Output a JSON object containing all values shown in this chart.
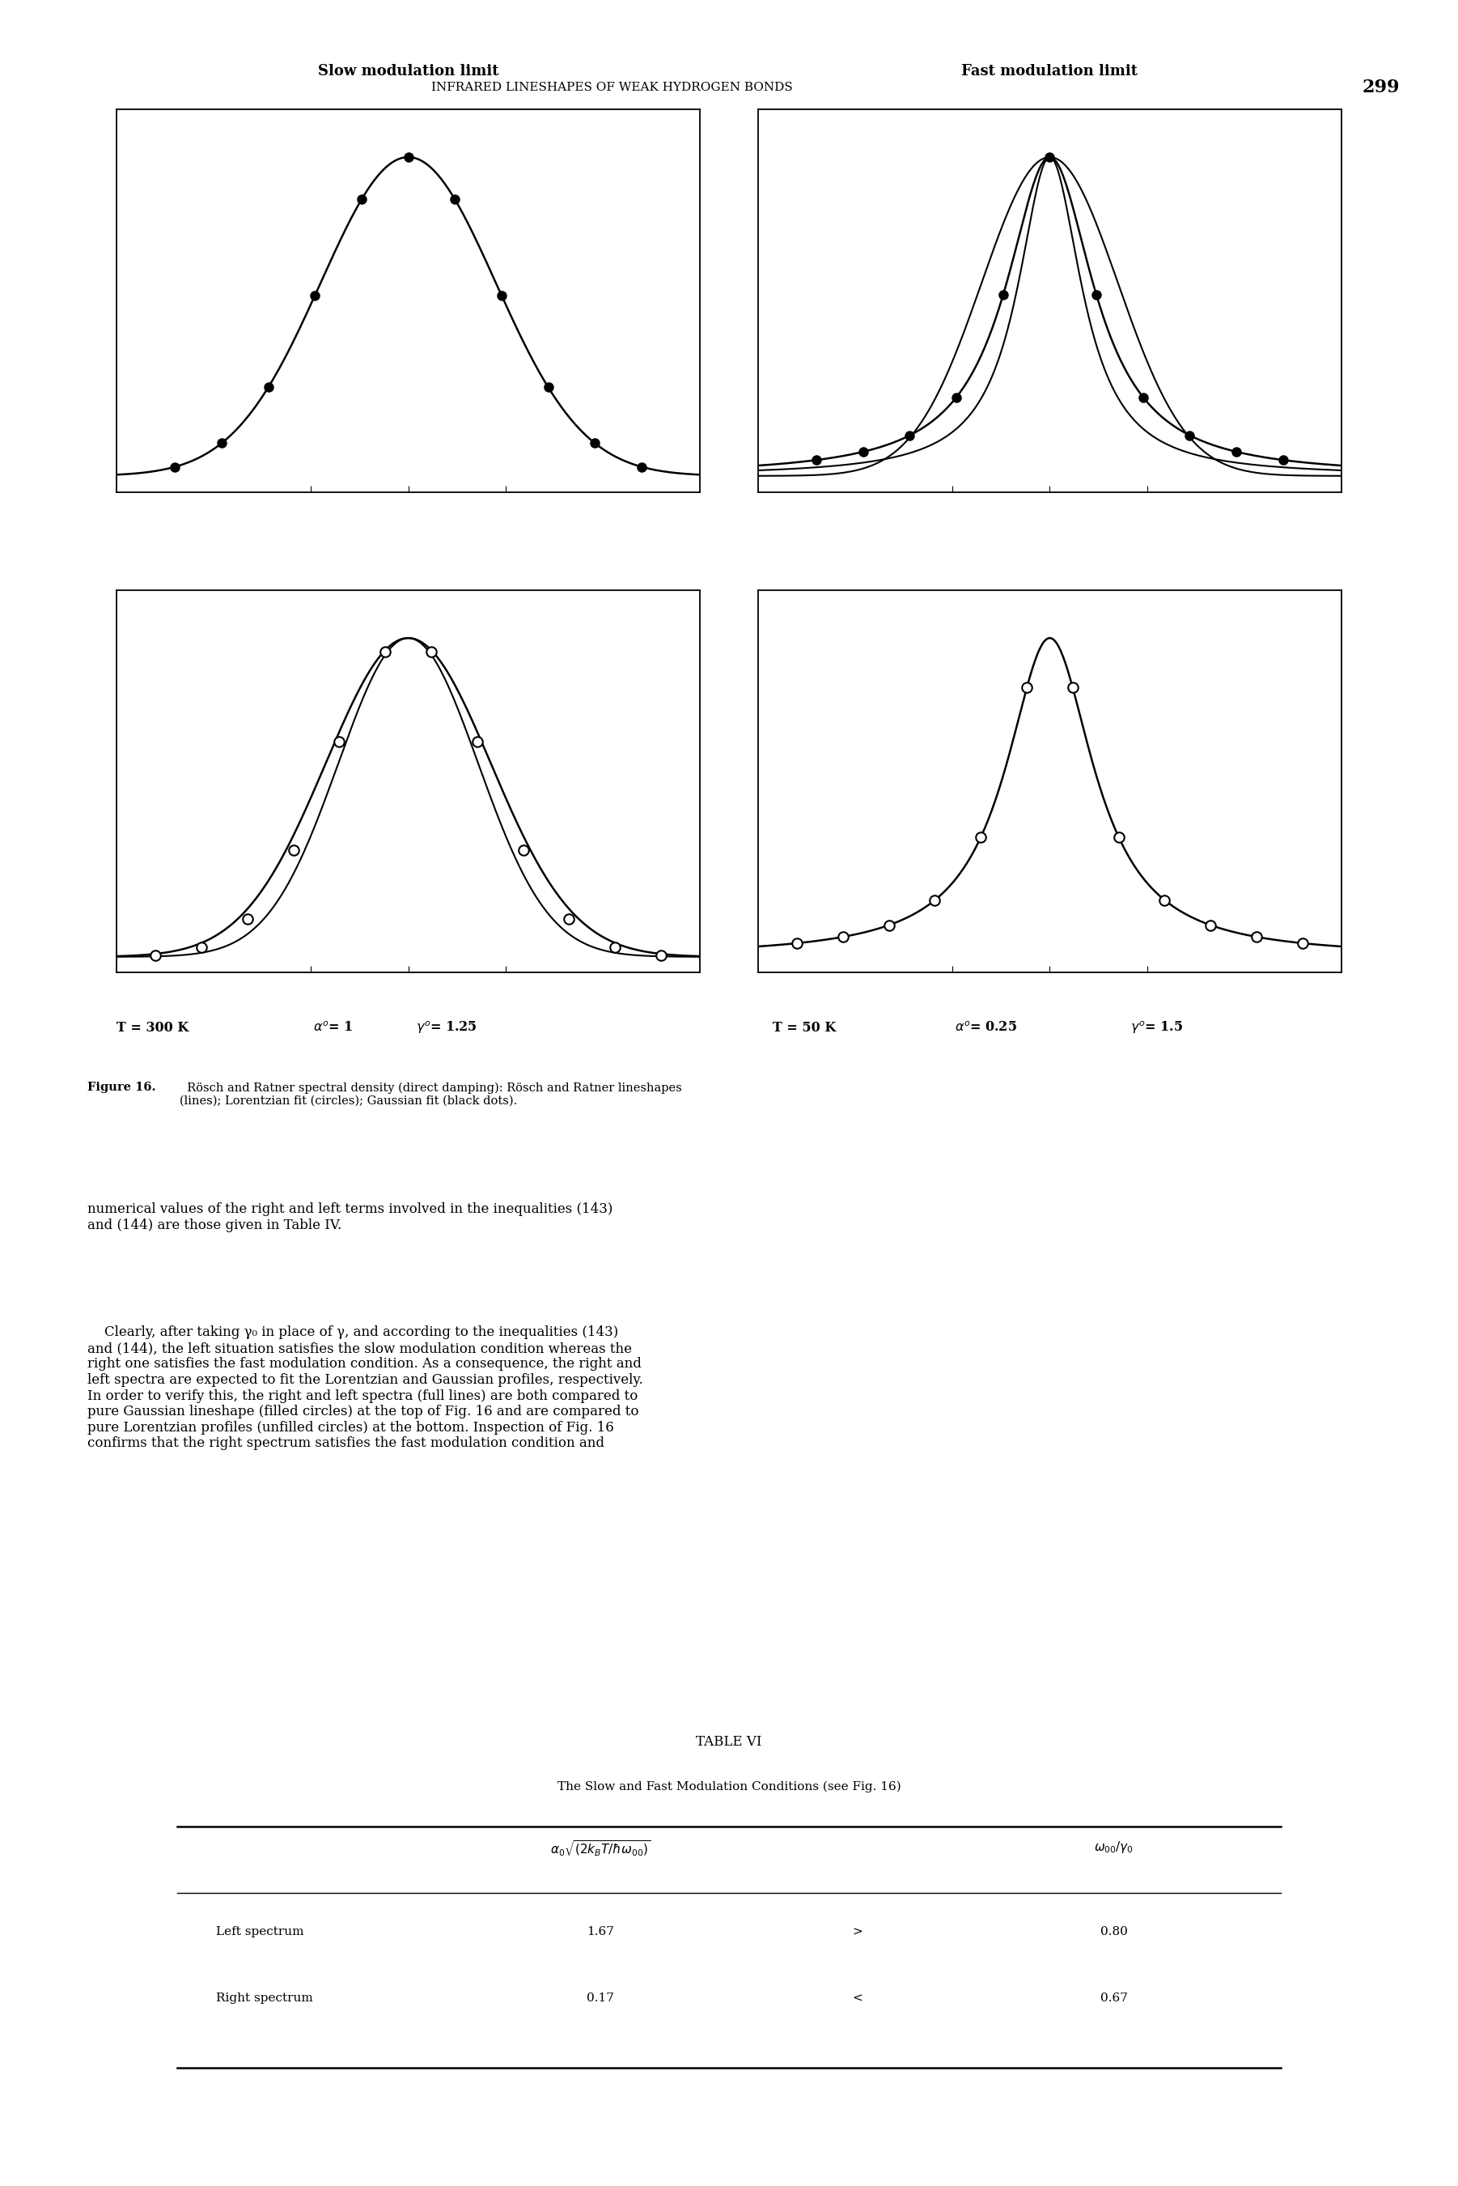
{
  "page_header": "INFRARED LINESHAPES OF WEAK HYDROGEN BONDS",
  "page_number": "299",
  "slow_title": "Slow modulation limit",
  "fast_title": "Fast modulation limit",
  "figure_caption_bold": "Figure 16.",
  "figure_caption_rest": "  Rösch and Ratner spectral density (direct damping): Rösch and Ratner lineshapes\n(lines); Lorentzian fit (circles); Gaussian fit (black dots).",
  "body_text_1": "numerical values of the right and left terms involved in the inequalities (143)\nand (144) are those given in Table IV.",
  "body_text_2": "    Clearly, after taking γ₀ in place of γ, and according to the inequalities (143)\nand (144), the left situation satisfies the slow modulation condition whereas the\nright one satisfies the fast modulation condition. As a consequence, the right and\nleft spectra are expected to fit the Lorentzian and Gaussian profiles, respectively.\nIn order to verify this, the right and left spectra (full lines) are both compared to\npure Gaussian lineshape (filled circles) at the top of Fig. 16 and are compared to\npure Lorentzian profiles (unfilled circles) at the bottom. Inspection of Fig. 16\nconfirms that the right spectrum satisfies the fast modulation condition and",
  "table_title": "TABLE VI",
  "table_subtitle": "The Slow and Fast Modulation Conditions (see Fig. 16)",
  "table_row1_label": "Left spectrum",
  "table_row1_val1": "1.67",
  "table_row1_op": ">",
  "table_row1_val2": "0.80",
  "table_row2_label": "Right spectrum",
  "table_row2_val1": "0.17",
  "table_row2_op": "<",
  "table_row2_val2": "0.67"
}
